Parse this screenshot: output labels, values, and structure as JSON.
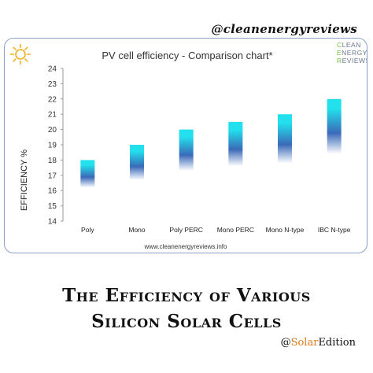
{
  "header": {
    "handle": "@cleanenergyreviews"
  },
  "brand": {
    "line1": "CLEAN",
    "line2": "ENERGY",
    "line3": "REVIEWS",
    "accent": "#6cbf3a"
  },
  "icon": {
    "name": "sun-icon",
    "color": "#f0b020"
  },
  "footer": {
    "url": "www.cleanenergyreviews.info"
  },
  "headline": {
    "line1": "The Efficiency of Various",
    "line2": "Silicon Solar Cells"
  },
  "signature": {
    "prefix": "@",
    "accent": "Solar",
    "suffix": "Edition",
    "accent_color": "#e07a1a"
  },
  "chart_data": {
    "type": "bar",
    "title": "PV cell efficiency - Comparison chart*",
    "ylabel": "EFFICIENCY %",
    "xlabel": "",
    "ylim": [
      14,
      24
    ],
    "yticks": [
      14,
      15,
      16,
      17,
      18,
      19,
      20,
      21,
      22,
      23,
      24
    ],
    "grid": false,
    "categories": [
      "Poly",
      "Mono",
      "Poly PERC",
      "Mono PERC",
      "Mono N-type",
      "IBC N-type"
    ],
    "ranges": [
      {
        "low": 16.2,
        "high": 18.0
      },
      {
        "low": 16.7,
        "high": 19.0
      },
      {
        "low": 17.3,
        "high": 20.0
      },
      {
        "low": 17.6,
        "high": 20.5
      },
      {
        "low": 17.8,
        "high": 21.0
      },
      {
        "low": 18.4,
        "high": 22.0
      }
    ],
    "colors": {
      "top": "#22e0ec",
      "mid": "#3a6ab8",
      "bottom": "#ffffff"
    }
  }
}
